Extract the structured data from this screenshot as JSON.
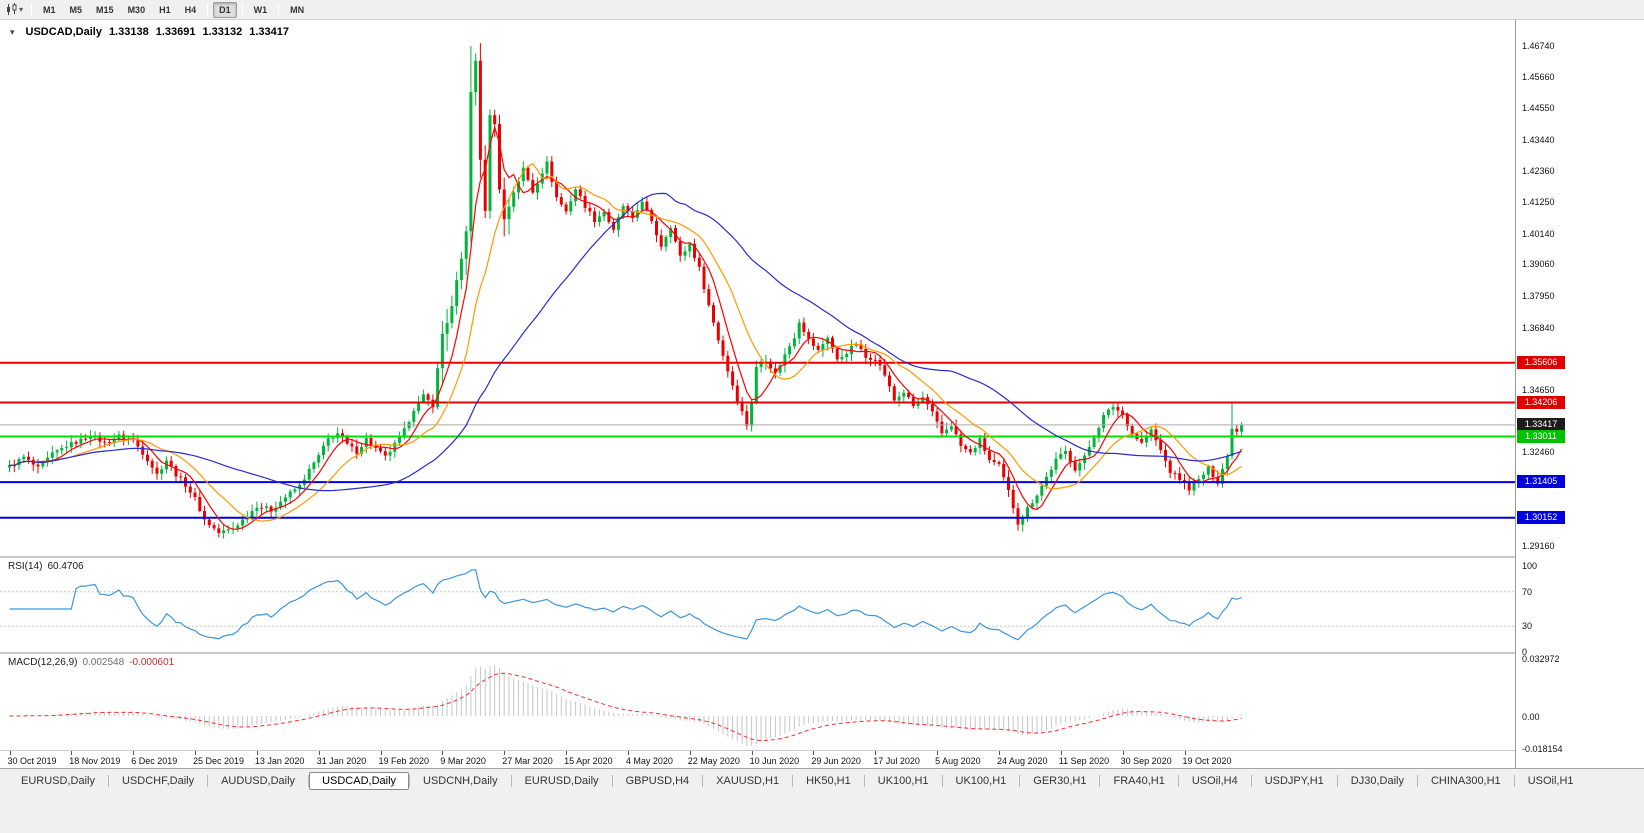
{
  "toolbar": {
    "timeframes": [
      "M1",
      "M5",
      "M15",
      "M30",
      "H1",
      "H4",
      "D1",
      "W1",
      "MN"
    ],
    "active_timeframe": "D1",
    "separators_after": [
      "H4",
      "D1",
      "W1"
    ],
    "chart_type_icon": "candlestick-chart-icon",
    "dropdown_icon": "chevron-down-icon"
  },
  "chart": {
    "symbol_label": "USDCAD,Daily",
    "ohlc": {
      "open": "1.33138",
      "high": "1.33691",
      "low": "1.33132",
      "close": "1.33417"
    },
    "price_axis": {
      "labels": [
        {
          "text": "1.46740",
          "value": 1.4674
        },
        {
          "text": "1.45660",
          "value": 1.4566
        },
        {
          "text": "1.44550",
          "value": 1.4455
        },
        {
          "text": "1.43440",
          "value": 1.4344
        },
        {
          "text": "1.42360",
          "value": 1.4236
        },
        {
          "text": "1.41250",
          "value": 1.4125
        },
        {
          "text": "1.40140",
          "value": 1.4014
        },
        {
          "text": "1.39060",
          "value": 1.3906
        },
        {
          "text": "1.37950",
          "value": 1.3795
        },
        {
          "text": "1.36840",
          "value": 1.3684
        },
        {
          "text": "1.34650",
          "value": 1.3465
        },
        {
          "text": "1.32460",
          "value": 1.3246
        },
        {
          "text": "1.29160",
          "value": 1.2916
        }
      ],
      "badges": [
        {
          "text": "1.35606",
          "value": 1.35606,
          "bg": "#DD0000",
          "fg": "#ffffff"
        },
        {
          "text": "1.34206",
          "value": 1.34206,
          "bg": "#DD0000",
          "fg": "#ffffff"
        },
        {
          "text": "1.33417",
          "value": 1.33417,
          "bg": "#1c1c1c",
          "fg": "#ffffff"
        },
        {
          "text": "1.33011",
          "value": 1.33011,
          "bg": "#00C000",
          "fg": "#ffffff"
        },
        {
          "text": "1.31405",
          "value": 1.31405,
          "bg": "#0000DC",
          "fg": "#ffffff"
        },
        {
          "text": "1.30152",
          "value": 1.30152,
          "bg": "#0000DC",
          "fg": "#ffffff"
        }
      ]
    },
    "hlines": [
      {
        "value": 1.35606,
        "color": "#E60000",
        "width": 2,
        "dash": false
      },
      {
        "value": 1.34206,
        "color": "#E60000",
        "width": 2,
        "dash": false
      },
      {
        "value": 1.33417,
        "color": "#ABABAB",
        "width": 1,
        "dash": false
      },
      {
        "value": 1.33011,
        "color": "#00DF00",
        "width": 2,
        "dash": false
      },
      {
        "value": 1.31405,
        "color": "#0000E6",
        "width": 2,
        "dash": false
      },
      {
        "value": 1.30152,
        "color": "#0000E6",
        "width": 2,
        "dash": false
      }
    ]
  },
  "rsi": {
    "label": "RSI(14)",
    "value": "60.4706",
    "axis_labels": [
      {
        "text": "100",
        "value": 100
      },
      {
        "text": "70",
        "value": 70
      },
      {
        "text": "30",
        "value": 30
      },
      {
        "text": "0",
        "value": 0
      }
    ]
  },
  "macd": {
    "label": "MACD(12,26,9)",
    "value_main": "0.002548",
    "value_signal": "-0.000601",
    "axis_labels": [
      {
        "text": "0.032972",
        "value": 0.032972
      },
      {
        "text": "0.00",
        "value": 0
      },
      {
        "text": "-0.018154",
        "value": -0.018154
      }
    ]
  },
  "dates": [
    "30 Oct 2019",
    "18 Nov 2019",
    "6 Dec 2019",
    "25 Dec 2019",
    "13 Jan 2020",
    "31 Jan 2020",
    "19 Feb 2020",
    "9 Mar 2020",
    "27 Mar 2020",
    "15 Apr 2020",
    "4 May 2020",
    "22 May 2020",
    "10 Jun 2020",
    "29 Jun 2020",
    "17 Jul 2020",
    "5 Aug 2020",
    "24 Aug 2020",
    "11 Sep 2020",
    "30 Sep 2020",
    "19 Oct 2020"
  ],
  "tabs": {
    "items": [
      "EURUSD,Daily",
      "USDCHF,Daily",
      "AUDUSD,Daily",
      "USDCAD,Daily",
      "USDCNH,Daily",
      "EURUSD,Daily",
      "GBPUSD,H4",
      "XAUUSD,H1",
      "HK50,H1",
      "UK100,H1",
      "UK100,H1",
      "GER30,H1",
      "FRA40,H1",
      "USOil,H4",
      "USDJPY,H1",
      "DJ30,Daily",
      "CHINA300,H1",
      "USOil,H1"
    ],
    "active_index": 3
  },
  "colors": {
    "up": "#00B43C",
    "down": "#EA0000",
    "rsi": "#3C96DC",
    "macd_hist": "#C6C6C6",
    "macd_signal": "#FF2A2A"
  },
  "chart_data": {
    "type": "candlestick",
    "symbol": "USDCAD",
    "timeframe": "Daily",
    "ohlc_display": {
      "open": 1.33138,
      "high": 1.33691,
      "low": 1.33132,
      "close": 1.33417
    },
    "ylim_visible": [
      1.28773,
      1.47654
    ],
    "candle_count": 260,
    "date_tick_indices": [
      0,
      13,
      26,
      39,
      52,
      65,
      78,
      91,
      104,
      117,
      130,
      143,
      156,
      169,
      182,
      195,
      208,
      221,
      234,
      247
    ],
    "close_anchors": [
      [
        0,
        1.3195
      ],
      [
        3,
        1.3228
      ],
      [
        6,
        1.3188
      ],
      [
        9,
        1.3238
      ],
      [
        12,
        1.3268
      ],
      [
        15,
        1.3288
      ],
      [
        17,
        1.3308
      ],
      [
        20,
        1.3278
      ],
      [
        23,
        1.3302
      ],
      [
        26,
        1.3288
      ],
      [
        29,
        1.3222
      ],
      [
        31,
        1.3168
      ],
      [
        33,
        1.3218
      ],
      [
        35,
        1.3168
      ],
      [
        37,
        1.3132
      ],
      [
        39,
        1.3082
      ],
      [
        41,
        1.3008
      ],
      [
        44,
        1.2962
      ],
      [
        47,
        1.2978
      ],
      [
        50,
        1.3022
      ],
      [
        52,
        1.3058
      ],
      [
        55,
        1.3042
      ],
      [
        58,
        1.3088
      ],
      [
        61,
        1.3128
      ],
      [
        63,
        1.3182
      ],
      [
        65,
        1.3232
      ],
      [
        67,
        1.3292
      ],
      [
        69,
        1.3312
      ],
      [
        71,
        1.3272
      ],
      [
        73,
        1.3248
      ],
      [
        75,
        1.3292
      ],
      [
        77,
        1.3258
      ],
      [
        79,
        1.3228
      ],
      [
        81,
        1.3272
      ],
      [
        83,
        1.3322
      ],
      [
        85,
        1.3398
      ],
      [
        87,
        1.3442
      ],
      [
        89,
        1.3412
      ],
      [
        91,
        1.3662
      ],
      [
        93,
        1.3752
      ],
      [
        95,
        1.3922
      ],
      [
        96,
        1.4032
      ],
      [
        97,
        1.4512
      ],
      [
        98,
        1.4622
      ],
      [
        99,
        1.4282
      ],
      [
        100,
        1.4082
      ],
      [
        101,
        1.4442
      ],
      [
        102,
        1.4392
      ],
      [
        103,
        1.4182
      ],
      [
        104,
        1.4062
      ],
      [
        106,
        1.4162
      ],
      [
        108,
        1.4242
      ],
      [
        110,
        1.4162
      ],
      [
        112,
        1.4232
      ],
      [
        113,
        1.4262
      ],
      [
        115,
        1.4142
      ],
      [
        117,
        1.4092
      ],
      [
        119,
        1.4172
      ],
      [
        121,
        1.4112
      ],
      [
        123,
        1.4062
      ],
      [
        125,
        1.4092
      ],
      [
        127,
        1.4022
      ],
      [
        129,
        1.4112
      ],
      [
        131,
        1.4062
      ],
      [
        133,
        1.4132
      ],
      [
        135,
        1.4052
      ],
      [
        137,
        1.3972
      ],
      [
        139,
        1.4042
      ],
      [
        141,
        1.3932
      ],
      [
        143,
        1.3978
      ],
      [
        145,
        1.3892
      ],
      [
        147,
        1.3762
      ],
      [
        149,
        1.3642
      ],
      [
        151,
        1.3532
      ],
      [
        153,
        1.3432
      ],
      [
        155,
        1.3342
      ],
      [
        156,
        1.3422
      ],
      [
        157,
        1.3542
      ],
      [
        159,
        1.3572
      ],
      [
        161,
        1.3522
      ],
      [
        163,
        1.3588
      ],
      [
        165,
        1.3652
      ],
      [
        166,
        1.3708
      ],
      [
        168,
        1.3642
      ],
      [
        170,
        1.3602
      ],
      [
        172,
        1.3652
      ],
      [
        174,
        1.3568
      ],
      [
        176,
        1.3598
      ],
      [
        178,
        1.3628
      ],
      [
        180,
        1.3578
      ],
      [
        182,
        1.3578
      ],
      [
        184,
        1.3518
      ],
      [
        186,
        1.3428
      ],
      [
        188,
        1.3458
      ],
      [
        190,
        1.3408
      ],
      [
        192,
        1.3438
      ],
      [
        194,
        1.3382
      ],
      [
        196,
        1.3312
      ],
      [
        198,
        1.3342
      ],
      [
        200,
        1.3268
      ],
      [
        202,
        1.3242
      ],
      [
        204,
        1.3288
      ],
      [
        206,
        1.3218
      ],
      [
        208,
        1.3198
      ],
      [
        210,
        1.3108
      ],
      [
        212,
        1.2998
      ],
      [
        214,
        1.3048
      ],
      [
        216,
        1.3098
      ],
      [
        218,
        1.3158
      ],
      [
        220,
        1.3218
      ],
      [
        222,
        1.3248
      ],
      [
        224,
        1.3188
      ],
      [
        226,
        1.3228
      ],
      [
        228,
        1.3302
      ],
      [
        230,
        1.3372
      ],
      [
        232,
        1.3408
      ],
      [
        234,
        1.3378
      ],
      [
        236,
        1.3312
      ],
      [
        238,
        1.3278
      ],
      [
        240,
        1.3322
      ],
      [
        242,
        1.3252
      ],
      [
        244,
        1.3178
      ],
      [
        246,
        1.3152
      ],
      [
        248,
        1.3118
      ],
      [
        250,
        1.3148
      ],
      [
        252,
        1.3188
      ],
      [
        254,
        1.3142
      ],
      [
        256,
        1.3232
      ],
      [
        257,
        1.3328
      ],
      [
        258,
        1.3318
      ],
      [
        259,
        1.33417
      ]
    ],
    "wick_highs": [
      [
        97,
        1.4674
      ],
      [
        257,
        1.342
      ]
    ],
    "wick_lows": [
      [
        44,
        1.2952
      ],
      [
        212,
        1.2994
      ]
    ],
    "moving_averages": [
      {
        "name": "ma-fast",
        "period": 6,
        "color": "#FF0000"
      },
      {
        "name": "ma-mid",
        "period": 14,
        "color": "#FF9900"
      },
      {
        "name": "ma-slow",
        "period": 42,
        "color": "#2A2AD0"
      }
    ],
    "rsi_period": 14,
    "macd_params": [
      12,
      26,
      9
    ]
  }
}
